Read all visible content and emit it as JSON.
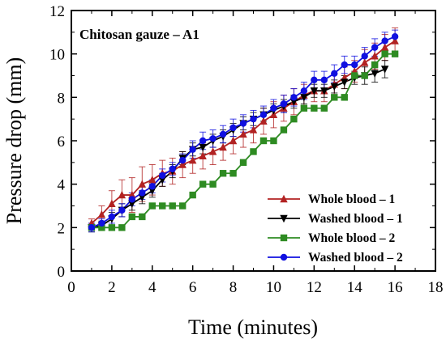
{
  "chart_data": {
    "type": "line",
    "title": "",
    "annotation": "Chitosan gauze – A1",
    "xlabel": "Time (minutes)",
    "ylabel": "Pressure drop (mm)",
    "xlim": [
      0,
      18
    ],
    "ylim": [
      0,
      12
    ],
    "xticks": [
      0,
      2,
      4,
      6,
      8,
      10,
      12,
      14,
      16,
      18
    ],
    "yticks": [
      0,
      2,
      4,
      6,
      8,
      10,
      12
    ],
    "grid": false,
    "legend_position": "bottom-right",
    "series": [
      {
        "name": "Whole blood – 1",
        "color": "#b22222",
        "marker": "triangle-up",
        "x": [
          1,
          1.5,
          2,
          2.5,
          3,
          3.5,
          4,
          4.5,
          5,
          5.5,
          6,
          6.5,
          7,
          7.5,
          8,
          8.5,
          9,
          9.5,
          10,
          10.5,
          11,
          11.5,
          12,
          12.5,
          13,
          13.5,
          14,
          14.5,
          15,
          15.5,
          16
        ],
        "y": [
          2.2,
          2.6,
          3.1,
          3.5,
          3.5,
          4.0,
          4.2,
          4.5,
          4.6,
          4.9,
          5.1,
          5.3,
          5.5,
          5.7,
          6.0,
          6.3,
          6.5,
          6.9,
          7.2,
          7.5,
          7.8,
          8.1,
          8.3,
          8.3,
          8.6,
          8.9,
          9.2,
          9.6,
          9.9,
          10.3,
          10.6
        ],
        "err": [
          0.2,
          0.4,
          0.6,
          0.7,
          0.8,
          0.8,
          0.7,
          0.6,
          0.6,
          0.6,
          0.6,
          0.6,
          0.6,
          0.6,
          0.6,
          0.6,
          0.6,
          0.6,
          0.6,
          0.6,
          0.6,
          0.5,
          0.5,
          0.5,
          0.5,
          0.5,
          0.5,
          0.6,
          0.6,
          0.6,
          0.6
        ]
      },
      {
        "name": "Washed blood – 1",
        "color": "#000000",
        "marker": "triangle-down",
        "x": [
          1,
          1.5,
          2,
          2.5,
          3,
          3.5,
          4,
          4.5,
          5,
          5.5,
          6,
          6.5,
          7,
          7.5,
          8,
          8.5,
          9,
          9.5,
          10,
          10.5,
          11,
          11.5,
          12,
          12.5,
          13,
          13.5,
          14,
          14.5,
          15,
          15.5
        ],
        "y": [
          2.0,
          2.1,
          2.4,
          2.8,
          3.1,
          3.4,
          3.7,
          4.2,
          4.6,
          5.2,
          5.6,
          5.7,
          6.0,
          6.2,
          6.5,
          6.8,
          7.0,
          7.2,
          7.4,
          7.6,
          7.8,
          8.0,
          8.3,
          8.3,
          8.5,
          8.7,
          8.9,
          9.0,
          9.1,
          9.3
        ],
        "err": [
          0.2,
          0.2,
          0.3,
          0.3,
          0.3,
          0.3,
          0.3,
          0.3,
          0.3,
          0.3,
          0.3,
          0.3,
          0.3,
          0.3,
          0.3,
          0.3,
          0.3,
          0.3,
          0.3,
          0.3,
          0.3,
          0.3,
          0.3,
          0.3,
          0.3,
          0.3,
          0.3,
          0.4,
          0.4,
          0.4
        ]
      },
      {
        "name": "Whole blood  – 2",
        "color": "#2e8b22",
        "marker": "square",
        "x": [
          1,
          1.5,
          2,
          2.5,
          3,
          3.5,
          4,
          4.5,
          5,
          5.5,
          6,
          6.5,
          7,
          7.5,
          8,
          8.5,
          9,
          9.5,
          10,
          10.5,
          11,
          11.5,
          12,
          12.5,
          13,
          13.5,
          14,
          14.5,
          15,
          15.5,
          16
        ],
        "y": [
          2.0,
          2.0,
          2.0,
          2.0,
          2.5,
          2.5,
          3.0,
          3.0,
          3.0,
          3.0,
          3.5,
          4.0,
          4.0,
          4.5,
          4.5,
          5.0,
          5.5,
          6.0,
          6.0,
          6.5,
          7.0,
          7.5,
          7.5,
          7.5,
          8.0,
          8.0,
          9.0,
          9.0,
          9.5,
          10.0,
          10.0
        ],
        "err": [
          0,
          0,
          0,
          0,
          0,
          0,
          0,
          0,
          0,
          0,
          0,
          0,
          0,
          0,
          0,
          0,
          0,
          0,
          0,
          0,
          0,
          0,
          0,
          0,
          0,
          0,
          0,
          0,
          0,
          0,
          0
        ]
      },
      {
        "name": "Washed blood – 2",
        "color": "#1010e0",
        "marker": "circle",
        "x": [
          1,
          1.5,
          2,
          2.5,
          3,
          3.5,
          4,
          4.5,
          5,
          5.5,
          6,
          6.5,
          7,
          7.5,
          8,
          8.5,
          9,
          9.5,
          10,
          10.5,
          11,
          11.5,
          12,
          12.5,
          13,
          13.5,
          14,
          14.5,
          15,
          15.5,
          16
        ],
        "y": [
          2.0,
          2.2,
          2.5,
          2.8,
          3.3,
          3.6,
          3.9,
          4.4,
          4.7,
          5.1,
          5.6,
          6.0,
          6.1,
          6.3,
          6.6,
          6.8,
          7.0,
          7.2,
          7.5,
          7.7,
          8.0,
          8.3,
          8.8,
          8.8,
          9.1,
          9.5,
          9.5,
          9.9,
          10.3,
          10.6,
          10.8
        ],
        "err": [
          0.2,
          0.2,
          0.3,
          0.3,
          0.3,
          0.3,
          0.3,
          0.3,
          0.3,
          0.3,
          0.4,
          0.4,
          0.4,
          0.4,
          0.4,
          0.4,
          0.4,
          0.4,
          0.4,
          0.4,
          0.4,
          0.4,
          0.4,
          0.4,
          0.4,
          0.4,
          0.4,
          0.4,
          0.4,
          0.4,
          0.3
        ]
      }
    ]
  }
}
